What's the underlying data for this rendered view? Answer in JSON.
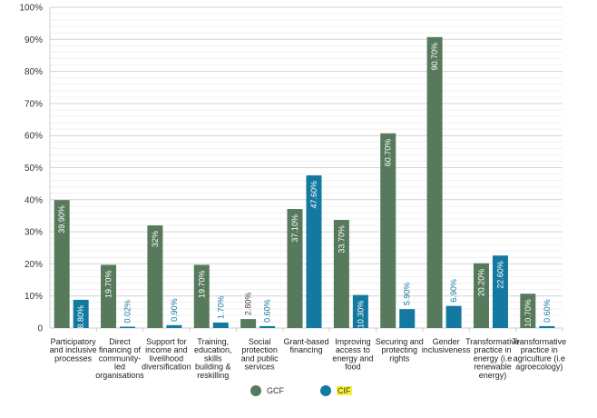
{
  "chart_data": {
    "type": "bar",
    "title": "",
    "xlabel": "",
    "ylabel": "",
    "ylim": [
      0,
      100
    ],
    "yticks": [
      "0",
      "10%",
      "20%",
      "30%",
      "40%",
      "50%",
      "60%",
      "70%",
      "80%",
      "90%",
      "100%"
    ],
    "grid": true,
    "legend_position": "bottom",
    "categories": [
      [
        "Participatory",
        "and inclusive",
        "processes"
      ],
      [
        "Direct",
        "financing of",
        "community-",
        "led",
        "organisations"
      ],
      [
        "Support for",
        "income and",
        "livelihood",
        "diversification"
      ],
      [
        "Training,",
        "education,",
        "skills",
        "building &",
        "reskilling"
      ],
      [
        "Social",
        "protection",
        "and public",
        "services"
      ],
      [
        "Grant-based",
        "financing"
      ],
      [
        "Improving",
        "access to",
        "energy and",
        "food"
      ],
      [
        "Securing and",
        "protecting",
        "rights"
      ],
      [
        "Gender",
        "inclusiveness"
      ],
      [
        "Transformative",
        "practice in",
        "energy (i.e",
        "renewable",
        "energy)"
      ],
      [
        "Transformative",
        "practice in",
        "agriculture (i.e",
        "agroecology)"
      ]
    ],
    "series": [
      {
        "name": "GCF",
        "color": "#587a5c",
        "values": [
          39.9,
          19.7,
          32,
          19.7,
          2.8,
          37.1,
          33.7,
          60.7,
          90.7,
          20.2,
          10.7
        ],
        "labels": [
          "39.90%",
          "19.70%",
          "32%",
          "19.70%",
          "2.80%",
          "37.10%",
          "33.70%",
          "60.70%",
          "90.70%",
          "20.20%",
          "10.70%"
        ]
      },
      {
        "name": "CIF",
        "color": "#1479a0",
        "values": [
          8.8,
          0.02,
          0.9,
          1.7,
          0.6,
          47.6,
          10.3,
          5.9,
          6.9,
          22.6,
          0.6
        ],
        "labels": [
          "8.80%",
          "0.02%",
          "0.90%",
          "1.70%",
          "0.60%",
          "47.60%",
          "10.30%",
          "5.90%",
          "6.90%",
          "22.60%",
          "0.60%"
        ]
      }
    ]
  },
  "legend": {
    "gcf_label": "GCF",
    "cif_label": "CIF"
  }
}
